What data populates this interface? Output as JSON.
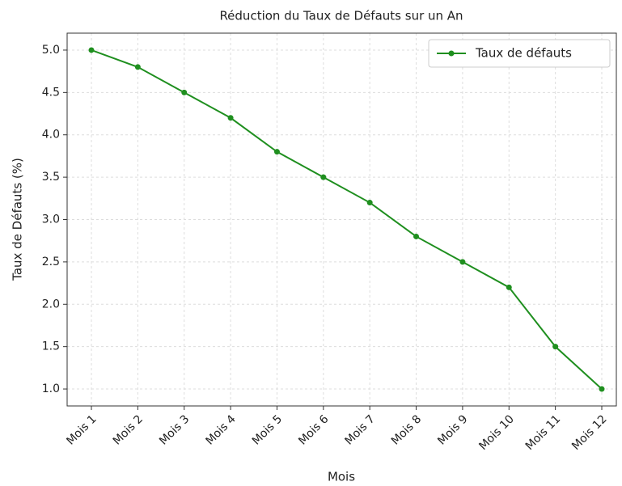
{
  "chart_data": {
    "type": "line",
    "title": "Réduction du Taux de Défauts sur un An",
    "xlabel": "Mois",
    "ylabel": "Taux de Défauts (%)",
    "categories": [
      "Mois 1",
      "Mois 2",
      "Mois 3",
      "Mois 4",
      "Mois 5",
      "Mois 6",
      "Mois 7",
      "Mois 8",
      "Mois 9",
      "Mois 10",
      "Mois 11",
      "Mois 12"
    ],
    "series": [
      {
        "name": "Taux de défauts",
        "color": "#1f8f1f",
        "values": [
          5.0,
          4.8,
          4.5,
          4.2,
          3.8,
          3.5,
          3.2,
          2.8,
          2.5,
          2.2,
          1.5,
          1.0
        ]
      }
    ],
    "ylim": [
      0.8,
      5.2
    ],
    "yticks": [
      {
        "value": 1.0,
        "label": "1.0"
      },
      {
        "value": 1.5,
        "label": "1.5"
      },
      {
        "value": 2.0,
        "label": "2.0"
      },
      {
        "value": 2.5,
        "label": "2.5"
      },
      {
        "value": 3.0,
        "label": "3.0"
      },
      {
        "value": 3.5,
        "label": "3.5"
      },
      {
        "value": 4.0,
        "label": "4.0"
      },
      {
        "value": 4.5,
        "label": "4.5"
      },
      {
        "value": 5.0,
        "label": "5.0"
      }
    ],
    "grid": true,
    "legend": "upper right"
  }
}
